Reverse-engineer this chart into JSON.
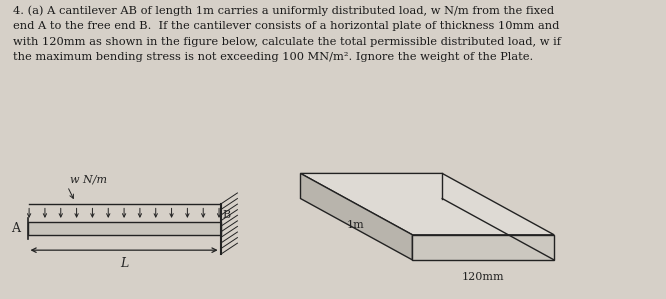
{
  "bg_color": "#d6d0c8",
  "text_color": "#1a1a1a",
  "title_line1": "4. (a) A cantilever AB of length 1m carries a uniformly distributed load, w N/m from the fixed",
  "title_line2": "end A to the free end B.  If the cantilever consists of a horizontal plate of thickness 10mm and",
  "title_line3": "with 120mm as shown in the figure below, calculate the total permissible distributed load, w if",
  "title_line4": "the maximum bending stress is not exceeding 100 MN/m². Ignore the weight of the Plate.",
  "cantilever_label_A": "A",
  "cantilever_label_B": "B",
  "cantilever_label_L": "L",
  "cantilever_label_w": "w N/m",
  "plate_label_1m": "1m",
  "plate_label_120mm": "120mm",
  "line_color": "#222222",
  "beam_face_color": "#c8c4bc",
  "wall_hatch_color": "#444444",
  "plate_top_color": "#dedad4",
  "plate_front_color": "#c8c4bc",
  "plate_side_color": "#b0ac a4"
}
